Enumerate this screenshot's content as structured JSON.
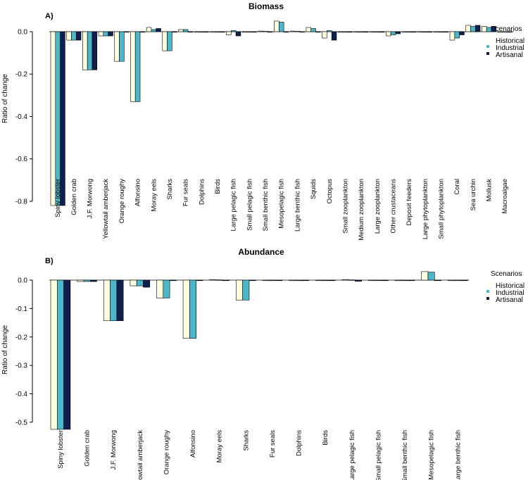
{
  "chart_data": [
    {
      "type": "bar",
      "panel_label": "A)",
      "title": "Biomass",
      "ylabel": "Ratio of change",
      "xlabel": "",
      "ylim": [
        -0.82,
        0.06
      ],
      "yticks": [
        0.0,
        -0.2,
        -0.4,
        -0.6,
        -0.8
      ],
      "ytick_labels": [
        "0.0",
        "-0.2",
        "-0.4",
        "-0.6",
        "-0.8"
      ],
      "legend_title": "Scenarios",
      "legend_position": "top-right",
      "categories": [
        "Spiny lobster",
        "Golden crab",
        "J.F. Morwong",
        "Yellowtail amberjack",
        "Orange roughy",
        "Alfonsino",
        "Moray eels",
        "Sharks",
        "Fur seals",
        "Dolphins",
        "Birds",
        "Large pelagic fish",
        "Small pelagic fish",
        "Small benthic fish",
        "Mesopelagic fish",
        "Large benthic fish",
        "Squids",
        "Octopus",
        "Small zooplankton",
        "Medium zooplankton",
        "Large zooplankton",
        "Other crustaceans",
        "Deposit feeders",
        "Large phytoplankton",
        "Small phytoplankton",
        "Coral",
        "Sea urchin",
        "Mollusk",
        "Macroalgae"
      ],
      "series": [
        {
          "name": "Historical",
          "color": "#fffde0",
          "values": [
            -0.82,
            -0.04,
            -0.18,
            -0.02,
            -0.14,
            -0.33,
            0.02,
            -0.09,
            0.01,
            0,
            0,
            -0.015,
            0,
            0.003,
            0.05,
            0.003,
            0.02,
            -0.03,
            0,
            0,
            0,
            -0.02,
            0,
            0,
            0,
            -0.04,
            0.03,
            0.025,
            0
          ]
        },
        {
          "name": "Industrial",
          "color": "#4bb8c9",
          "values": [
            -0.82,
            -0.04,
            -0.18,
            -0.02,
            -0.14,
            -0.33,
            0.01,
            -0.09,
            0.01,
            0,
            0,
            0.005,
            0,
            0.002,
            0.045,
            0.002,
            0.015,
            0.005,
            0,
            0,
            0,
            -0.015,
            0,
            0,
            0,
            -0.03,
            0.025,
            0.02,
            0
          ]
        },
        {
          "name": "Artisanal",
          "color": "#0e1f50",
          "values": [
            -0.82,
            -0.04,
            -0.18,
            -0.02,
            0,
            0,
            0.015,
            0,
            0,
            0,
            0,
            -0.02,
            0,
            0,
            0,
            0,
            0,
            -0.04,
            0,
            0,
            0,
            -0.01,
            0,
            0,
            0,
            -0.015,
            0.03,
            0.025,
            0
          ]
        }
      ]
    },
    {
      "type": "bar",
      "panel_label": "B)",
      "title": "Abundance",
      "ylabel": "Ratio of change",
      "xlabel": "",
      "ylim": [
        -0.525,
        0.04
      ],
      "yticks": [
        0.0,
        -0.1,
        -0.2,
        -0.3,
        -0.4,
        -0.5
      ],
      "ytick_labels": [
        "0.0",
        "-0.1",
        "-0.2",
        "-0.3",
        "-0.4",
        "-0.5"
      ],
      "legend_title": "Scenarios",
      "legend_position": "top-right",
      "categories": [
        "Spiny lobster",
        "Golden crab",
        "J.F. Morwong",
        "Yellowtail amberjack",
        "Orange roughy",
        "Alfonsino",
        "Moray eels",
        "Sharks",
        "Fur seals",
        "Dolphins",
        "Birds",
        "Large pelagic fish",
        "Small pelagic fish",
        "Small benthic fish",
        "Mesopelagic fish",
        "Large benthic fish"
      ],
      "series": [
        {
          "name": "Historical",
          "color": "#fffde0",
          "values": [
            -0.525,
            -0.005,
            -0.143,
            -0.02,
            -0.063,
            -0.205,
            0.002,
            -0.07,
            0,
            0,
            0,
            0.002,
            0,
            0,
            0.03,
            0
          ]
        },
        {
          "name": "Industrial",
          "color": "#4bb8c9",
          "values": [
            -0.525,
            -0.005,
            -0.143,
            -0.02,
            -0.063,
            -0.205,
            0.001,
            -0.07,
            0,
            0,
            0,
            0.001,
            0,
            0,
            0.028,
            0
          ]
        },
        {
          "name": "Artisanal",
          "color": "#0e1f50",
          "values": [
            -0.525,
            -0.005,
            -0.143,
            -0.025,
            0,
            0,
            0,
            0,
            0,
            0,
            0,
            -0.004,
            0,
            0,
            0,
            0
          ]
        }
      ]
    }
  ]
}
